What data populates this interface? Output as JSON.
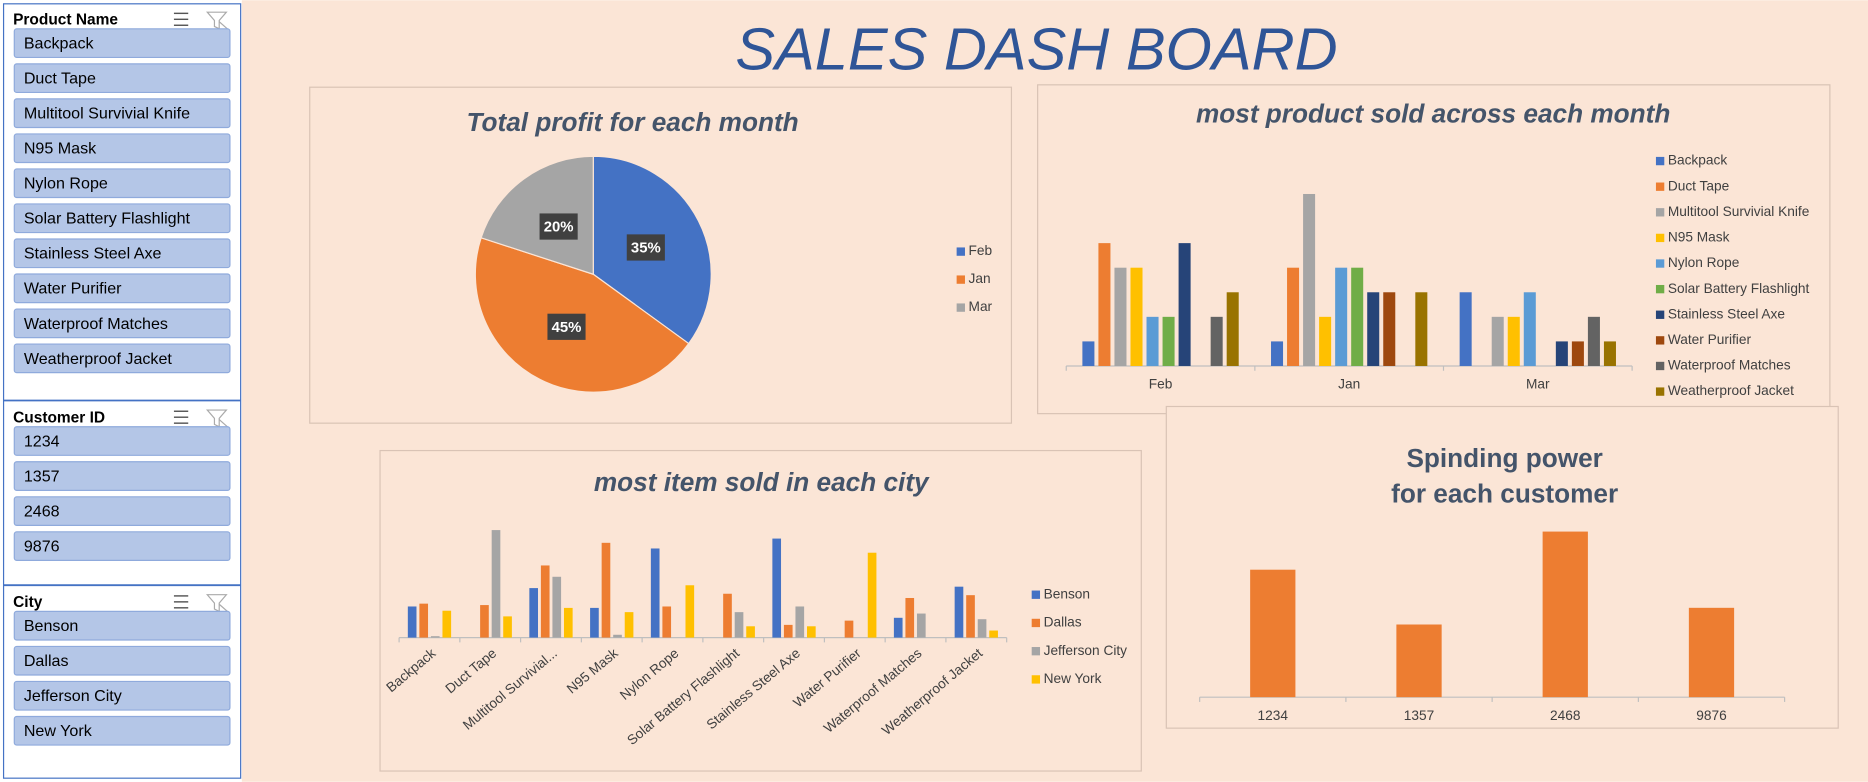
{
  "dashboard_title": "SALES DASH BOARD",
  "slicers": [
    {
      "title": "Product Name",
      "items": [
        "Backpack",
        "Duct Tape",
        "Multitool Survivial Knife",
        "N95 Mask",
        "Nylon Rope",
        "Solar Battery Flashlight",
        "Stainless Steel Axe",
        "Water Purifier",
        "Waterproof Matches",
        "Weatherproof Jacket"
      ]
    },
    {
      "title": "Customer ID",
      "items": [
        "1234",
        "1357",
        "2468",
        "9876"
      ]
    },
    {
      "title": "City",
      "items": [
        "Benson",
        "Dallas",
        "Jefferson City",
        "New York"
      ]
    }
  ],
  "chart_data": [
    {
      "type": "pie",
      "title": "Total profit for each month",
      "categories": [
        "Feb",
        "Jan",
        "Mar"
      ],
      "values": [
        35,
        45,
        20
      ],
      "value_labels": [
        "35%",
        "45%",
        "20%"
      ],
      "colors": [
        "#4472c4",
        "#ed7d31",
        "#a5a5a5"
      ],
      "legend": "right"
    },
    {
      "type": "grouped-bar",
      "title": "most product sold across each month",
      "categories": [
        "Feb",
        "Jan",
        "Mar"
      ],
      "ylim": [
        0,
        8
      ],
      "legend": "right",
      "series": [
        {
          "name": "Backpack",
          "color": "#4472c4",
          "values": [
            1,
            1,
            3
          ]
        },
        {
          "name": "Duct Tape",
          "color": "#ed7d31",
          "values": [
            5,
            4,
            0
          ]
        },
        {
          "name": "Multitool Survivial Knife",
          "color": "#a5a5a5",
          "values": [
            4,
            7,
            2
          ]
        },
        {
          "name": "N95 Mask",
          "color": "#ffc000",
          "values": [
            4,
            2,
            2
          ]
        },
        {
          "name": "Nylon Rope",
          "color": "#5b9bd5",
          "values": [
            2,
            4,
            3
          ]
        },
        {
          "name": "Solar Battery Flashlight",
          "color": "#70ad47",
          "values": [
            2,
            4,
            0
          ]
        },
        {
          "name": "Stainless Steel Axe",
          "color": "#264478",
          "values": [
            5,
            3,
            1
          ]
        },
        {
          "name": "Water Purifier",
          "color": "#9e480e",
          "values": [
            0,
            3,
            1
          ]
        },
        {
          "name": "Waterproof Matches",
          "color": "#636363",
          "values": [
            2,
            0,
            2
          ]
        },
        {
          "name": "Weatherproof Jacket",
          "color": "#997300",
          "values": [
            3,
            3,
            1
          ]
        }
      ]
    },
    {
      "type": "grouped-bar",
      "title": "most item sold in each city",
      "categories": [
        "Backpack",
        "Duct Tape",
        "Multitool Survivial...",
        "N95 Mask",
        "Nylon Rope",
        "Solar Battery Flashlight",
        "Stainless Steel Axe",
        "Water Purifier",
        "Waterproof Matches",
        "Weatherproof Jacket"
      ],
      "ylim": [
        0,
        80
      ],
      "legend": "right",
      "rotated_labels": true,
      "series": [
        {
          "name": "Benson",
          "color": "#4472c4",
          "values": [
            22,
            0,
            35,
            21,
            63,
            0,
            70,
            0,
            14,
            36
          ]
        },
        {
          "name": "Dallas",
          "color": "#ed7d31",
          "values": [
            24,
            23,
            51,
            67,
            22,
            31,
            9,
            12,
            28,
            30
          ]
        },
        {
          "name": "Jefferson City",
          "color": "#a5a5a5",
          "values": [
            1,
            76,
            43,
            2,
            0,
            18,
            22,
            0,
            17,
            13
          ]
        },
        {
          "name": "New York",
          "color": "#ffc000",
          "values": [
            19,
            15,
            21,
            18,
            37,
            8,
            8,
            60,
            0,
            5
          ]
        }
      ]
    },
    {
      "type": "bar",
      "title": [
        "Spinding power",
        "for each customer"
      ],
      "categories": [
        "1234",
        "1357",
        "2468",
        "9876"
      ],
      "values": [
        107,
        61,
        139,
        75
      ],
      "color": "#ed7d31",
      "ylim": [
        0,
        160
      ]
    }
  ]
}
